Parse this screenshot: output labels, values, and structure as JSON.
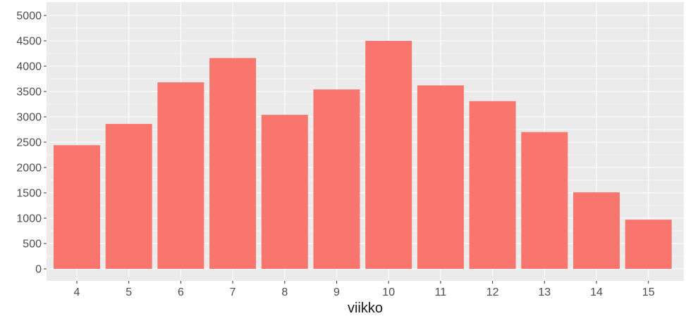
{
  "chart_data": {
    "type": "bar",
    "title": "",
    "xlabel": "viikko",
    "ylabel": "",
    "categories": [
      "4",
      "5",
      "6",
      "7",
      "8",
      "9",
      "10",
      "11",
      "12",
      "13",
      "14",
      "15"
    ],
    "values": [
      2440,
      2860,
      3680,
      4160,
      3040,
      3540,
      4500,
      3620,
      3310,
      2700,
      1510,
      970
    ],
    "ylim": [
      0,
      5000
    ],
    "yticks": [
      "0",
      "500",
      "1000",
      "1500",
      "2000",
      "2500",
      "3000",
      "3500",
      "4000",
      "4500",
      "5000"
    ],
    "grid": true,
    "legend": "none",
    "colors": {
      "bar": "#F8766D",
      "panel_background": "#EBEBEB",
      "grid_major": "#FFFFFF",
      "tick_text": "#4D4D4D",
      "axis_title_text": "#1A1A1A"
    }
  }
}
